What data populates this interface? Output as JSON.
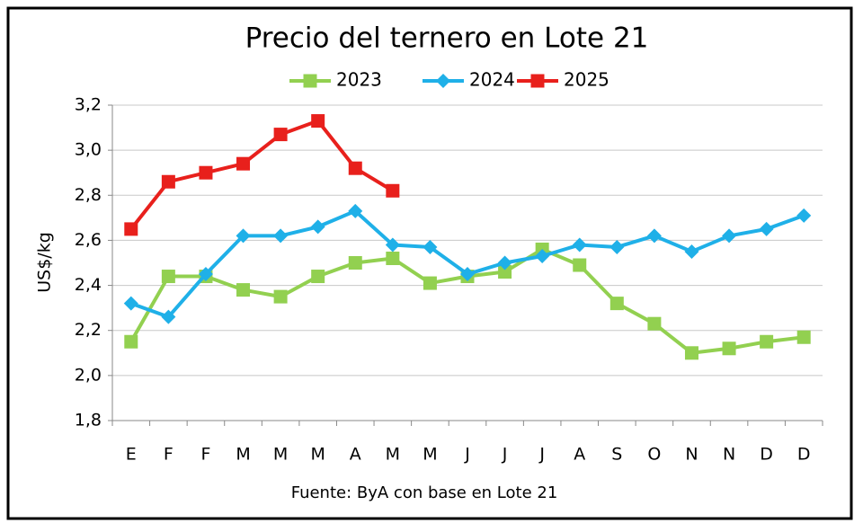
{
  "chart_data": {
    "type": "line",
    "title": "Precio del ternero en Lote 21",
    "y_label": "US$/kg",
    "source": "Fuente: ByA con base en Lote 21",
    "categories": [
      "E",
      "F",
      "F",
      "M",
      "M",
      "M",
      "A",
      "M",
      "M",
      "J",
      "J",
      "J",
      "A",
      "S",
      "O",
      "N",
      "N",
      "D",
      "D"
    ],
    "ylim": [
      1.8,
      3.2
    ],
    "yticks": [
      {
        "value": 1.8,
        "label": "1,8"
      },
      {
        "value": 2.0,
        "label": "2,0"
      },
      {
        "value": 2.2,
        "label": "2,2"
      },
      {
        "value": 2.4,
        "label": "2,4"
      },
      {
        "value": 2.6,
        "label": "2,6"
      },
      {
        "value": 2.8,
        "label": "2,8"
      },
      {
        "value": 3.0,
        "label": "3,0"
      },
      {
        "value": 3.2,
        "label": "3,2"
      }
    ],
    "grid": true,
    "legend": "top",
    "series": [
      {
        "name": "2023",
        "color": "#92d050",
        "marker": "square",
        "values": [
          2.15,
          2.44,
          2.44,
          2.38,
          2.35,
          2.44,
          2.5,
          2.52,
          2.41,
          2.44,
          2.46,
          2.56,
          2.49,
          2.32,
          2.23,
          2.1,
          2.12,
          2.15,
          2.17
        ]
      },
      {
        "name": "2024",
        "color": "#1fb0e8",
        "marker": "diamond",
        "values": [
          2.32,
          2.26,
          2.45,
          2.62,
          2.62,
          2.66,
          2.73,
          2.58,
          2.57,
          2.45,
          2.5,
          2.53,
          2.58,
          2.57,
          2.62,
          2.55,
          2.62,
          2.65,
          2.71
        ]
      },
      {
        "name": "2025",
        "color": "#e8201c",
        "marker": "square",
        "values": [
          2.65,
          2.86,
          2.9,
          2.94,
          3.07,
          3.13,
          2.92,
          2.82,
          null,
          null,
          null,
          null,
          null,
          null,
          null,
          null,
          null,
          null,
          null
        ]
      }
    ]
  }
}
